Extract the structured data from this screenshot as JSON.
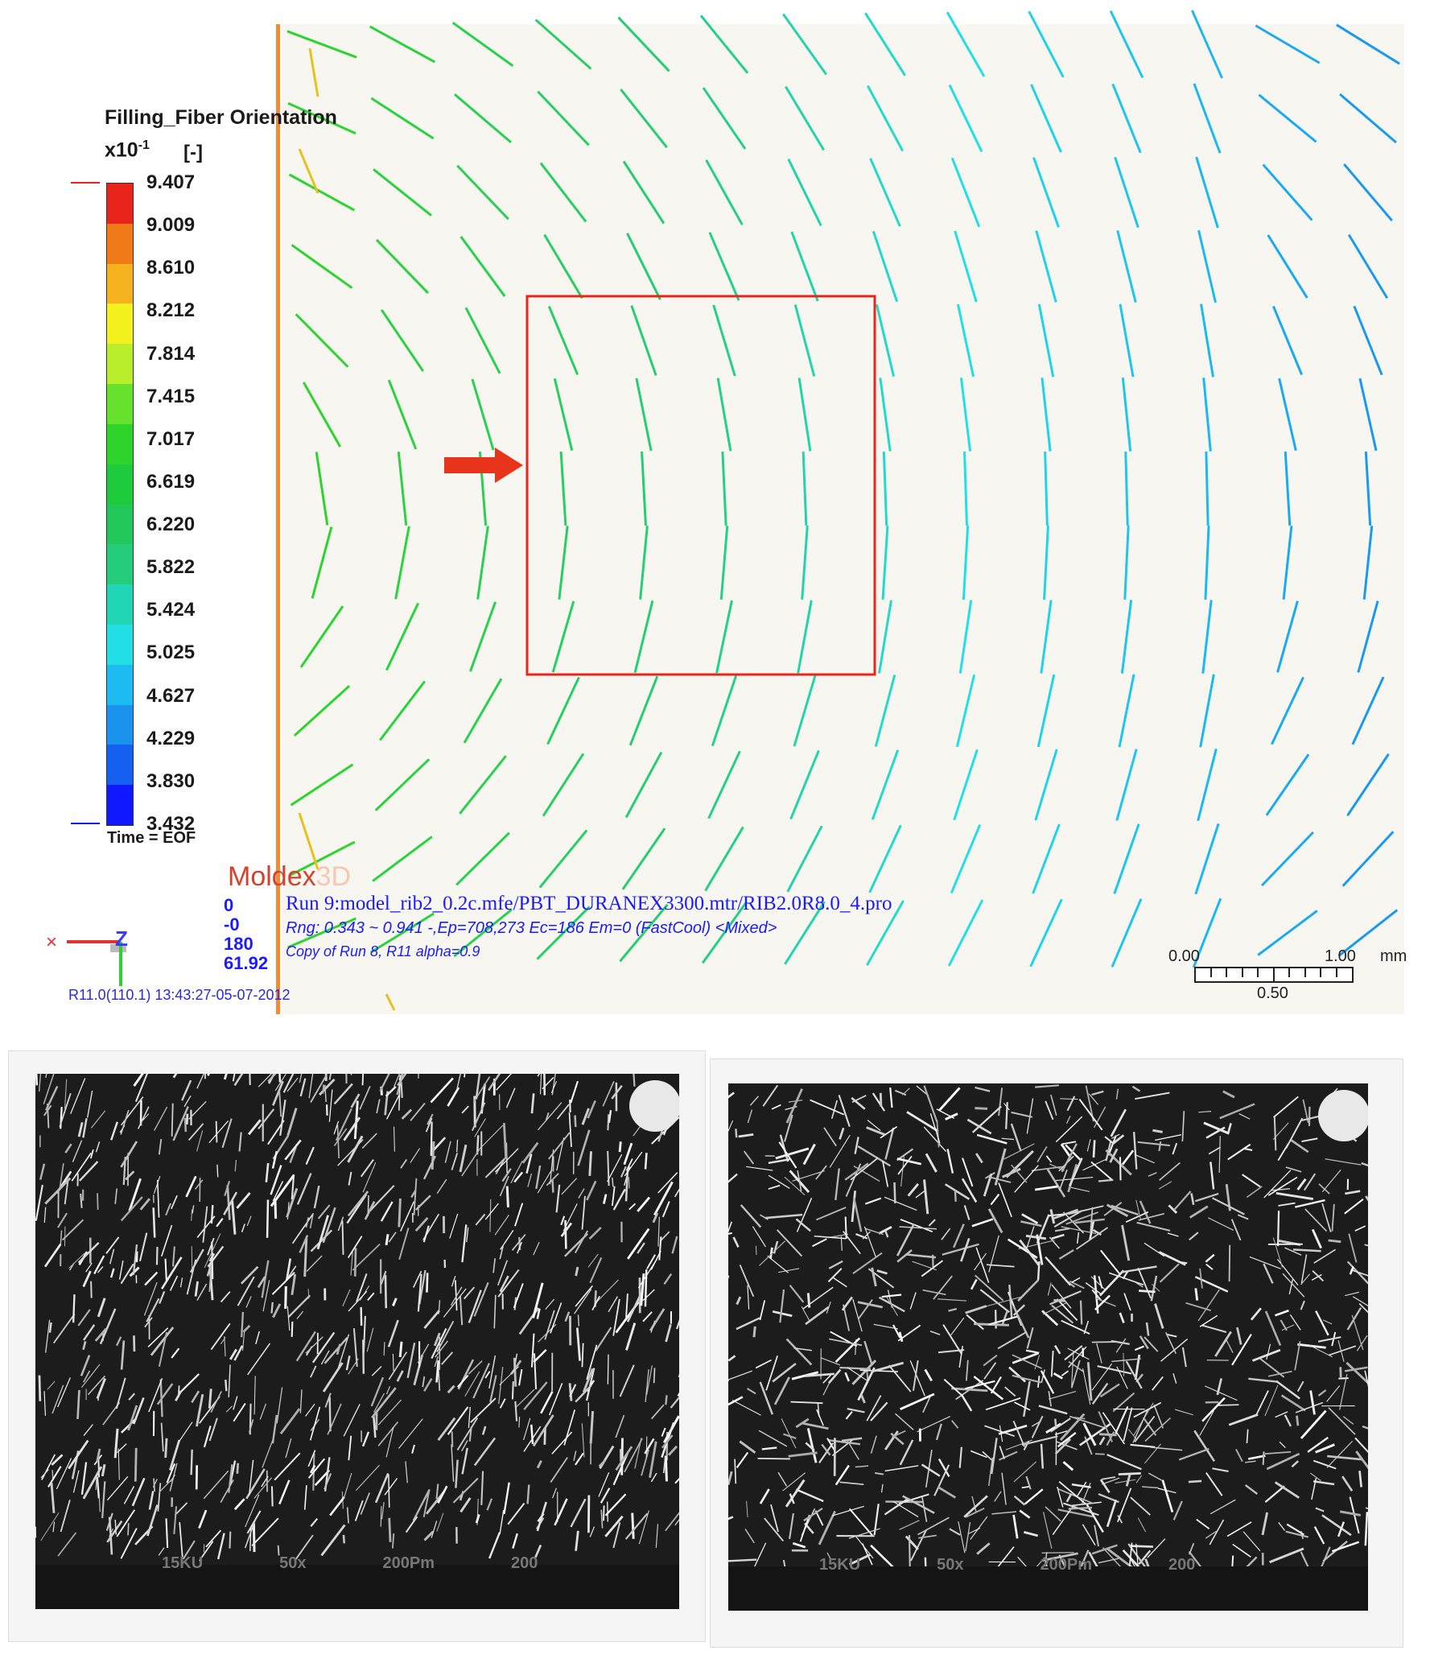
{
  "legend": {
    "title": "Filling_Fiber Orientation",
    "scale_base": "x10",
    "scale_exp": "-1",
    "unit": "[-]",
    "ticks": [
      "9.407",
      "9.009",
      "8.610",
      "8.212",
      "7.814",
      "7.415",
      "7.017",
      "6.619",
      "6.220",
      "5.822",
      "5.424",
      "5.025",
      "4.627",
      "4.229",
      "3.830",
      "3.432"
    ],
    "colors": [
      "#e8241b",
      "#f07a18",
      "#f6b21c",
      "#f4f21e",
      "#b9ee2a",
      "#66e22c",
      "#2ed42a",
      "#1ecb3c",
      "#22c85a",
      "#24cc7c",
      "#20d6b4",
      "#22dfe6",
      "#1cbcf2",
      "#1a93ee",
      "#1460f0",
      "#1018ff"
    ],
    "time_label": "Time = EOF"
  },
  "logo": {
    "main": "Moldex",
    "suffix": "3D"
  },
  "view_numbers": [
    "0",
    "-0",
    "180",
    "61.92"
  ],
  "run_info": "Run 9:model_rib2_0.2c.mfe/PBT_DURANEX3300.mtr/RIB2.0R8.0_4.pro",
  "rng_info": "Rng: 0.343 ~ 0.941 -,Ep=708,273 Ec=186 Em=0 (FastCool) <Mixed>",
  "copy_info": "Copy of Run 8, R11 alpha=0.9",
  "timestamp": "R11.0(110.1) 13:43:27-05-07-2012",
  "scale_bar": {
    "left": "0.00",
    "right": "1.00",
    "unit": "mm",
    "mid": "0.50"
  },
  "sem_left": {
    "footer": [
      "15KU",
      "50x",
      "200Pm",
      "200"
    ]
  },
  "sem_right": {
    "footer": [
      "15KU",
      "50x",
      "200Pm",
      "200"
    ]
  }
}
